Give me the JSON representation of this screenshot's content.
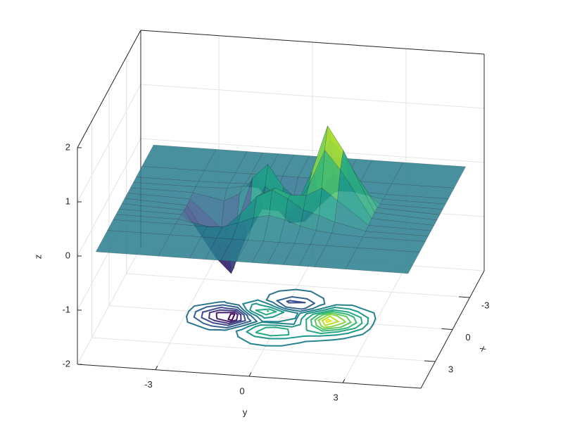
{
  "chart_data": {
    "type": "surface",
    "xlabel": "x",
    "ylabel": "y",
    "zlabel": "z",
    "x": [
      -5,
      -3,
      -2,
      -1.5,
      -1,
      -0.5,
      0,
      0.5,
      1,
      1.5,
      2,
      3,
      5
    ],
    "y": [
      -5,
      -3,
      -2,
      -1.5,
      -1,
      -0.5,
      0,
      0.5,
      1,
      1.5,
      2,
      3,
      5
    ],
    "z": [
      [
        0,
        0,
        0,
        0,
        0,
        0,
        0,
        0,
        0,
        0,
        0,
        0,
        0
      ],
      [
        0,
        0,
        0,
        0,
        0,
        0,
        0,
        0,
        0,
        0,
        0,
        0,
        0
      ],
      [
        0,
        0,
        0.01,
        0.02,
        -0.03,
        -0.16,
        -0.27,
        -0.22,
        -0.1,
        0,
        0.02,
        0,
        0
      ],
      [
        0,
        0,
        0.01,
        0.07,
        0.06,
        -0.24,
        -0.55,
        -0.5,
        -0.17,
        0.1,
        0.11,
        0.01,
        0
      ],
      [
        0,
        -0.01,
        -0.12,
        0.03,
        0.37,
        0.16,
        -0.33,
        -0.4,
        0.05,
        0.52,
        0.42,
        0.02,
        0
      ],
      [
        0,
        -0.03,
        -0.53,
        -0.44,
        0.44,
        0.71,
        0.3,
        0.08,
        0.56,
        1.24,
        0.91,
        0.05,
        0
      ],
      [
        0,
        -0.05,
        -0.95,
        -1.14,
        -0.14,
        0.4,
        0.2,
        0.09,
        0.74,
        1.6,
        1.17,
        0.06,
        0
      ],
      [
        0,
        -0.04,
        -0.87,
        -1.15,
        -0.44,
        0.08,
        0.07,
        0.08,
        0.59,
        1.25,
        0.91,
        0.05,
        0
      ],
      [
        0,
        -0.02,
        -0.42,
        -0.53,
        -0.05,
        0.44,
        0.59,
        0.48,
        0.49,
        0.65,
        0.44,
        0.02,
        0
      ],
      [
        0,
        -0.01,
        -0.11,
        -0.09,
        0.18,
        0.51,
        0.65,
        0.51,
        0.32,
        0.24,
        0.14,
        0.01,
        0
      ],
      [
        0,
        0,
        -0.01,
        0.01,
        0.1,
        0.22,
        0.28,
        0.22,
        0.12,
        0.06,
        0.03,
        0,
        0
      ],
      [
        0,
        0,
        0,
        0,
        0,
        0,
        0,
        0,
        0,
        0,
        0,
        0,
        0
      ],
      [
        0,
        0,
        0,
        0,
        0,
        0,
        0,
        0,
        0,
        0,
        0,
        0,
        0
      ]
    ],
    "xlim": [
      -5.5,
      5.5
    ],
    "ylim": [
      -5.5,
      5.5
    ],
    "zlim": [
      -2,
      2
    ],
    "xticks": [
      -3,
      0,
      3
    ],
    "yticks": [
      -3,
      0,
      3
    ],
    "zticks": [
      -2,
      -1,
      0,
      1,
      2
    ],
    "grid": true,
    "colormap": [
      "#440154",
      "#482878",
      "#3e4989",
      "#31688e",
      "#26828e",
      "#1f9e89",
      "#35b779",
      "#6ece58",
      "#b5de2b",
      "#fde725"
    ],
    "face_alpha": 0.85,
    "contour_levels": [
      -1.1,
      -0.9,
      -0.7,
      -0.5,
      -0.3,
      -0.1,
      0.1,
      0.3,
      0.5,
      0.7,
      0.9,
      1.1,
      1.3,
      1.5
    ]
  }
}
